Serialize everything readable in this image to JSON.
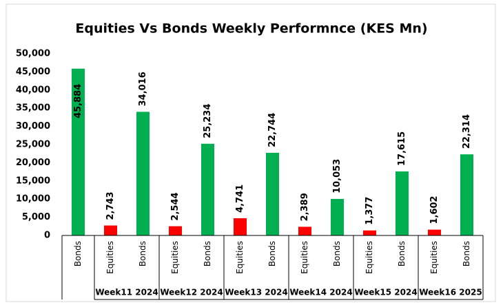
{
  "chart_data": {
    "type": "bar",
    "title": "Equities Vs Bonds Weekly Performnce (KES Mn)",
    "groups": [
      {
        "name": null,
        "categories": [
          "Bonds"
        ],
        "values": [
          45884
        ],
        "value_labels": [
          "45,884"
        ],
        "colors": [
          "#00b050"
        ]
      },
      {
        "name": "Week11 2024",
        "categories": [
          "Equities",
          "Bonds"
        ],
        "values": [
          2743,
          34016
        ],
        "value_labels": [
          "2,743",
          "34,016"
        ],
        "colors": [
          "#ff0000",
          "#00b050"
        ]
      },
      {
        "name": "Week12 2024",
        "categories": [
          "Equities",
          "Bonds"
        ],
        "values": [
          2544,
          25234
        ],
        "value_labels": [
          "2,544",
          "25,234"
        ],
        "colors": [
          "#ff0000",
          "#00b050"
        ]
      },
      {
        "name": "Week13 2024",
        "categories": [
          "Equities",
          "Bonds"
        ],
        "values": [
          4741,
          22744
        ],
        "value_labels": [
          "4,741",
          "22,744"
        ],
        "colors": [
          "#ff0000",
          "#00b050"
        ]
      },
      {
        "name": "Week14 2024",
        "categories": [
          "Equities",
          "Bonds"
        ],
        "values": [
          2389,
          10053
        ],
        "value_labels": [
          "2,389",
          "10,053"
        ],
        "colors": [
          "#ff0000",
          "#00b050"
        ]
      },
      {
        "name": "Week15 2024",
        "categories": [
          "Equities",
          "Bonds"
        ],
        "values": [
          1377,
          17615
        ],
        "value_labels": [
          "1,377",
          "17,615"
        ],
        "colors": [
          "#ff0000",
          "#00b050"
        ]
      },
      {
        "name": "Week16 2025",
        "categories": [
          "Equities",
          "Bonds"
        ],
        "values": [
          1602,
          22314
        ],
        "value_labels": [
          "1,602",
          "22,314"
        ],
        "colors": [
          "#ff0000",
          "#00b050"
        ]
      }
    ],
    "ylim": [
      0,
      50000
    ],
    "yticks": [
      0,
      {
        "value": 5000,
        "label": "5,000"
      },
      {
        "value": 10000,
        "label": "10,000"
      },
      {
        "value": 15000,
        "label": "15,000"
      },
      {
        "value": 20000,
        "label": "20,000"
      },
      {
        "value": 25000,
        "label": "25,000"
      },
      {
        "value": 30000,
        "label": "30,000"
      },
      {
        "value": 35000,
        "label": "35,000"
      },
      {
        "value": 40000,
        "label": "40,000"
      },
      {
        "value": 45000,
        "label": "45,000"
      },
      {
        "value": 50000,
        "label": "50,000"
      }
    ],
    "grid": false
  }
}
